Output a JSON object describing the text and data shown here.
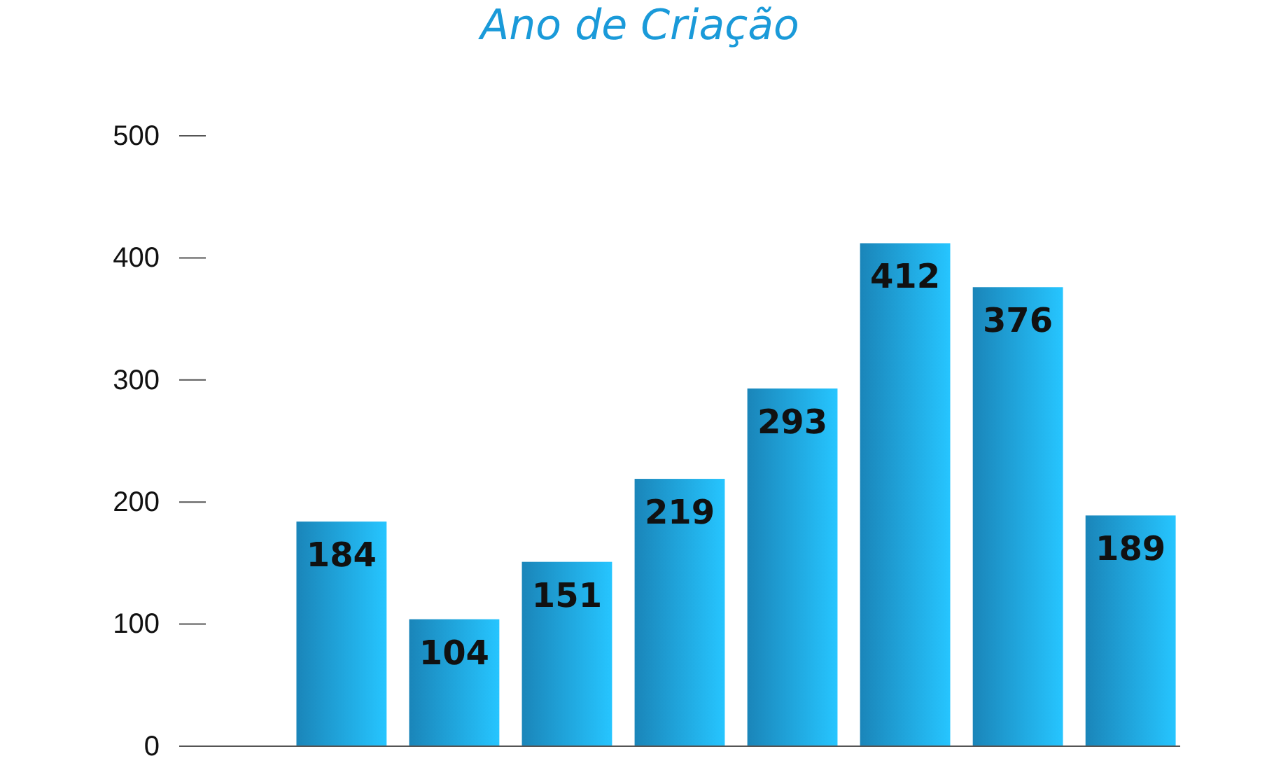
{
  "chart_data": {
    "type": "bar",
    "title": "Ano de Criação",
    "categories": [
      null,
      null,
      null,
      null,
      null,
      null,
      null,
      null,
      null
    ],
    "values": [
      null,
      184,
      104,
      151,
      219,
      293,
      412,
      376,
      189
    ],
    "color": "#1f9fdd",
    "ylim": [
      0,
      500
    ],
    "yticks": [
      0,
      100,
      200,
      300,
      400,
      500
    ],
    "grid": false,
    "data_labels": true
  }
}
